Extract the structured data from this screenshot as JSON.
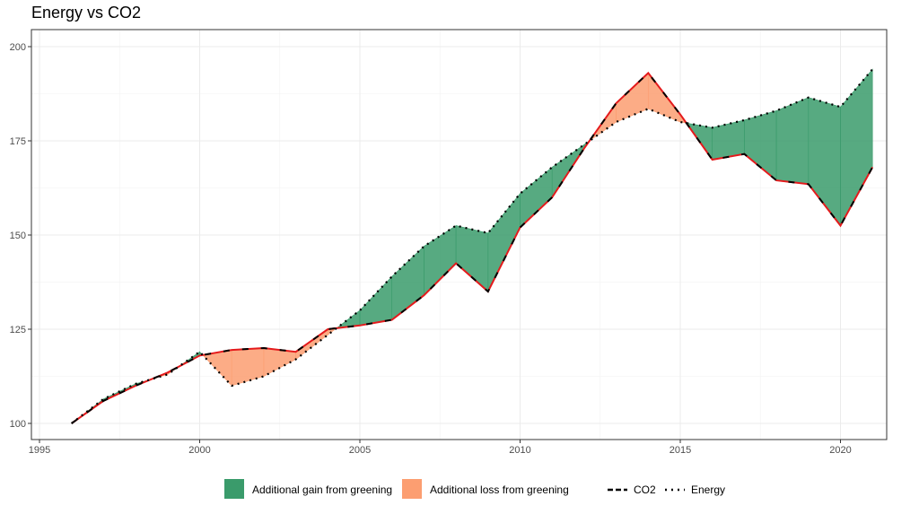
{
  "chart_data": {
    "type": "line",
    "title": "Energy vs CO2",
    "xlabel": "",
    "ylabel": "",
    "xlim": [
      1995,
      2022
    ],
    "ylim": [
      95,
      205
    ],
    "grid": true,
    "legend_position": "bottom",
    "x_ticks": [
      1995,
      2000,
      2005,
      2010,
      2015,
      2020
    ],
    "y_ticks": [
      100,
      125,
      150,
      175,
      200
    ],
    "x": [
      1996,
      1997,
      1998,
      1999,
      2000,
      2001,
      2002,
      2003,
      2004,
      2005,
      2006,
      2007,
      2008,
      2009,
      2010,
      2011,
      2012,
      2013,
      2014,
      2015,
      2016,
      2017,
      2018,
      2019,
      2020,
      2021
    ],
    "series": [
      {
        "name": "CO2",
        "line_style": "dashed",
        "color": "#e41a1c",
        "values": [
          100,
          106,
          110,
          113.5,
          118,
          119.5,
          120,
          119,
          125,
          126,
          127.5,
          134,
          142.5,
          135,
          152,
          160,
          173,
          185,
          193,
          182,
          170,
          171.5,
          164.5,
          163.5,
          152.5,
          168
        ]
      },
      {
        "name": "Energy",
        "line_style": "dotted",
        "color": "#000000",
        "values": [
          100,
          106.5,
          110.5,
          113,
          119,
          110,
          112.5,
          117,
          123.5,
          130,
          139,
          147,
          152.5,
          150.5,
          161,
          168,
          174,
          180,
          183.5,
          180,
          178.5,
          180.5,
          183,
          186.5,
          184,
          194
        ]
      }
    ],
    "fills": [
      {
        "name": "Additional gain from greening",
        "color": "#3a9b6b"
      },
      {
        "name": "Additional loss from greening",
        "color": "#fc9e71"
      }
    ]
  }
}
